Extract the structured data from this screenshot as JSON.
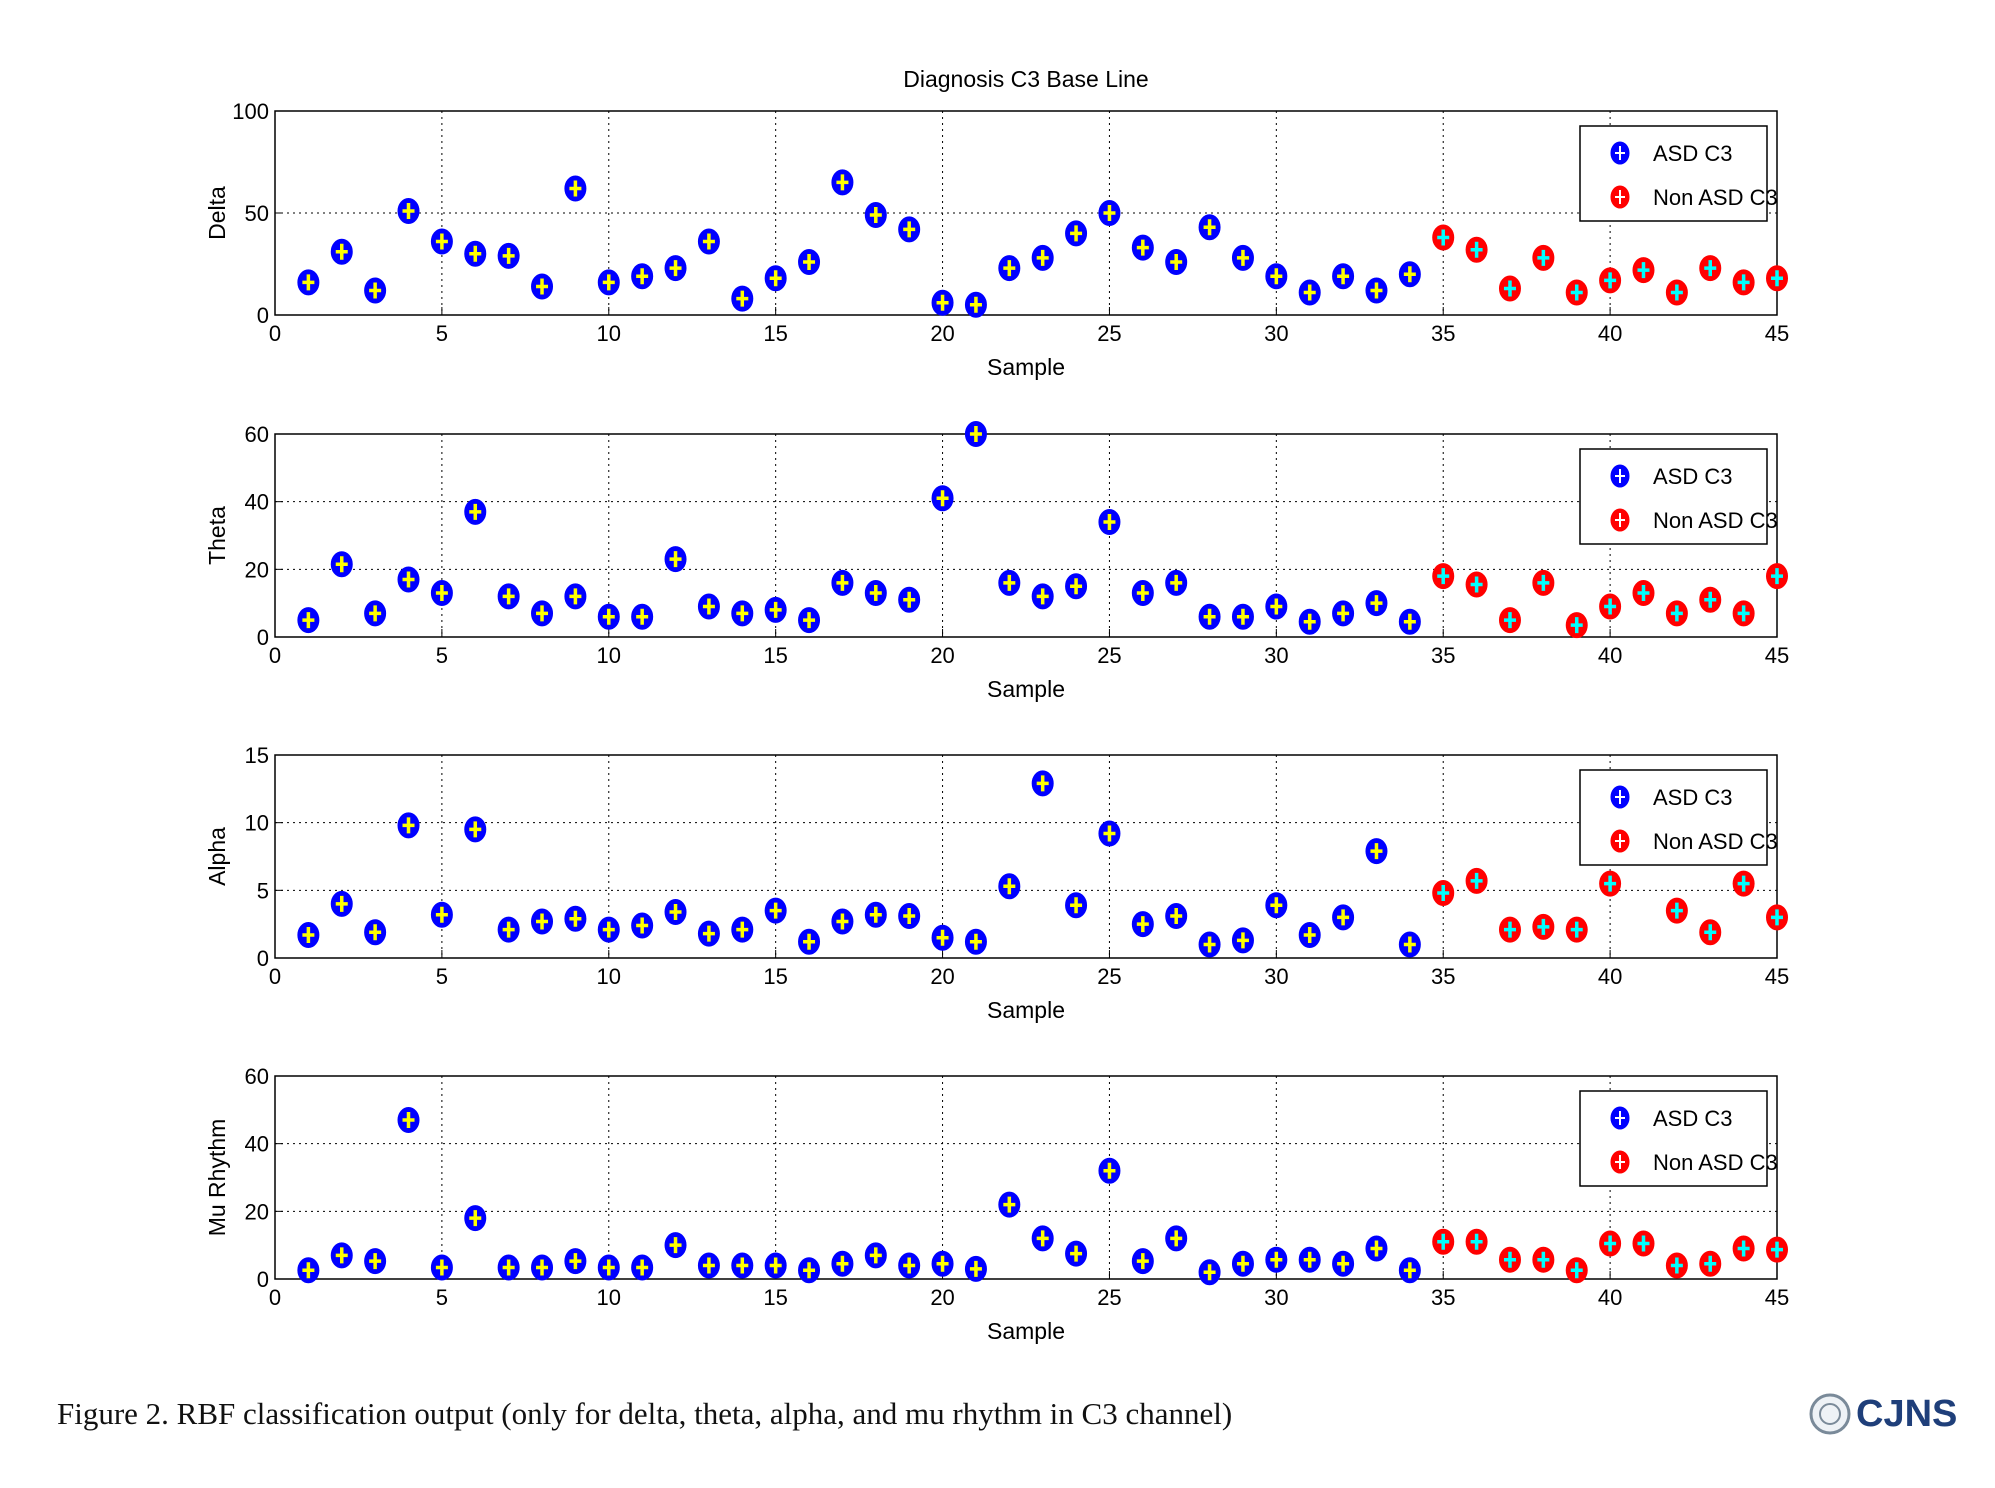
{
  "chart_data": [
    {
      "type": "scatter",
      "title": "Diagnosis C3 Base Line",
      "ylabel": "Delta",
      "xlabel": "Sample",
      "xlim": [
        0,
        45
      ],
      "xticks": [
        0,
        5,
        10,
        15,
        20,
        25,
        30,
        35,
        40,
        45
      ],
      "ylim": [
        0,
        100
      ],
      "yticks": [
        0,
        50,
        100
      ],
      "grid": true,
      "legend": "upper right",
      "series": [
        {
          "name": "ASD C3",
          "color": "#0000ff",
          "plus_color": "#ffff00",
          "x": [
            1,
            2,
            3,
            4,
            5,
            6,
            7,
            8,
            9,
            10,
            11,
            12,
            13,
            14,
            15,
            16,
            17,
            18,
            19,
            20,
            21,
            22,
            23,
            24,
            25,
            26,
            27,
            28,
            29,
            30,
            31,
            32,
            33,
            34
          ],
          "values": [
            16,
            31,
            12,
            51,
            36,
            30,
            29,
            14,
            62,
            16,
            19,
            23,
            36,
            8,
            18,
            26,
            65,
            49,
            42,
            6,
            5,
            23,
            28,
            40,
            50,
            33,
            26,
            43,
            28,
            19,
            11,
            19,
            12,
            20
          ]
        },
        {
          "name": "Non ASD C3",
          "color": "#ff0000",
          "plus_color": "#00ffff",
          "x": [
            35,
            36,
            37,
            38,
            39,
            40,
            41,
            42,
            43,
            44,
            45
          ],
          "values": [
            38,
            32,
            13,
            28,
            11,
            17,
            22,
            11,
            23,
            16,
            18
          ]
        }
      ]
    },
    {
      "type": "scatter",
      "ylabel": "Theta",
      "xlabel": "Sample",
      "xlim": [
        0,
        45
      ],
      "xticks": [
        0,
        5,
        10,
        15,
        20,
        25,
        30,
        35,
        40,
        45
      ],
      "ylim": [
        0,
        60
      ],
      "yticks": [
        0,
        20,
        40,
        60
      ],
      "grid": true,
      "legend": "upper right",
      "series": [
        {
          "name": "ASD C3",
          "color": "#0000ff",
          "plus_color": "#ffff00",
          "x": [
            1,
            2,
            3,
            4,
            5,
            6,
            7,
            8,
            9,
            10,
            11,
            12,
            13,
            14,
            15,
            16,
            17,
            18,
            19,
            20,
            21,
            22,
            23,
            24,
            25,
            26,
            27,
            28,
            29,
            30,
            31,
            32,
            33,
            34
          ],
          "values": [
            5,
            21.5,
            7,
            17,
            13,
            37,
            12,
            7,
            12,
            6,
            6,
            23,
            9,
            7,
            8,
            5,
            16,
            13,
            11,
            41,
            60,
            16,
            12,
            15,
            34,
            13,
            16,
            6,
            6,
            9,
            4.5,
            7,
            10,
            4.5
          ]
        },
        {
          "name": "Non ASD C3",
          "color": "#ff0000",
          "plus_color": "#00ffff",
          "x": [
            35,
            36,
            37,
            38,
            39,
            40,
            41,
            42,
            43,
            44,
            45
          ],
          "values": [
            18,
            15.5,
            5,
            16,
            3.5,
            9,
            13,
            7,
            11,
            7,
            18
          ]
        }
      ]
    },
    {
      "type": "scatter",
      "ylabel": "Alpha",
      "xlabel": "Sample",
      "xlim": [
        0,
        45
      ],
      "xticks": [
        0,
        5,
        10,
        15,
        20,
        25,
        30,
        35,
        40,
        45
      ],
      "ylim": [
        0,
        15
      ],
      "yticks": [
        0,
        5,
        10,
        15
      ],
      "grid": true,
      "legend": "upper right",
      "series": [
        {
          "name": "ASD C3",
          "color": "#0000ff",
          "plus_color": "#ffff00",
          "x": [
            1,
            2,
            3,
            4,
            5,
            6,
            7,
            8,
            9,
            10,
            11,
            12,
            13,
            14,
            15,
            16,
            17,
            18,
            19,
            20,
            21,
            22,
            23,
            24,
            25,
            26,
            27,
            28,
            29,
            30,
            31,
            32,
            33,
            34
          ],
          "values": [
            1.7,
            4,
            1.9,
            9.8,
            3.2,
            9.5,
            2.1,
            2.7,
            2.9,
            2.1,
            2.4,
            3.4,
            1.8,
            2.1,
            3.5,
            1.2,
            2.7,
            3.2,
            3.1,
            1.5,
            1.2,
            5.3,
            12.9,
            3.9,
            9.2,
            2.5,
            3.1,
            1,
            1.3,
            3.9,
            1.7,
            3,
            7.9,
            1
          ]
        },
        {
          "name": "Non ASD C3",
          "color": "#ff0000",
          "plus_color": "#00ffff",
          "x": [
            35,
            36,
            37,
            38,
            39,
            40,
            41,
            42,
            43,
            44,
            45
          ],
          "values": [
            4.8,
            5.7,
            2.1,
            2.3,
            2.1,
            5.5,
            null,
            3.5,
            1.9,
            5.5,
            3
          ]
        }
      ]
    },
    {
      "type": "scatter",
      "ylabel": "Mu Rhythm",
      "xlabel": "Sample",
      "xlim": [
        0,
        45
      ],
      "xticks": [
        0,
        5,
        10,
        15,
        20,
        25,
        30,
        35,
        40,
        45
      ],
      "ylim": [
        0,
        60
      ],
      "yticks": [
        0,
        20,
        40,
        60
      ],
      "grid": true,
      "legend": "upper right",
      "series": [
        {
          "name": "ASD C3",
          "color": "#0000ff",
          "plus_color": "#ffff00",
          "x": [
            1,
            2,
            3,
            4,
            5,
            6,
            7,
            8,
            9,
            10,
            11,
            12,
            13,
            14,
            15,
            16,
            17,
            18,
            19,
            20,
            21,
            22,
            23,
            24,
            25,
            26,
            27,
            28,
            29,
            30,
            31,
            32,
            33,
            34
          ],
          "values": [
            2.6,
            7,
            5.3,
            47,
            3.4,
            18,
            3.4,
            3.4,
            5.3,
            3.4,
            3.4,
            10,
            4,
            4,
            4,
            2.6,
            4.5,
            7,
            4,
            4.5,
            3,
            22,
            12,
            7.5,
            32,
            5.3,
            12,
            2,
            4.5,
            5.7,
            5.7,
            4.5,
            9,
            2.6
          ]
        },
        {
          "name": "Non ASD C3",
          "color": "#ff0000",
          "plus_color": "#00ffff",
          "x": [
            35,
            36,
            37,
            38,
            39,
            40,
            41,
            42,
            43,
            44,
            45
          ],
          "values": [
            11,
            11,
            5.7,
            5.7,
            2.6,
            10.5,
            10.5,
            4,
            4.5,
            9,
            8.7
          ]
        }
      ]
    }
  ],
  "caption": "Figure 2. RBF classification output (only for delta, theta, alpha, and mu rhythm in C3 channel)",
  "logo": "CJNS"
}
